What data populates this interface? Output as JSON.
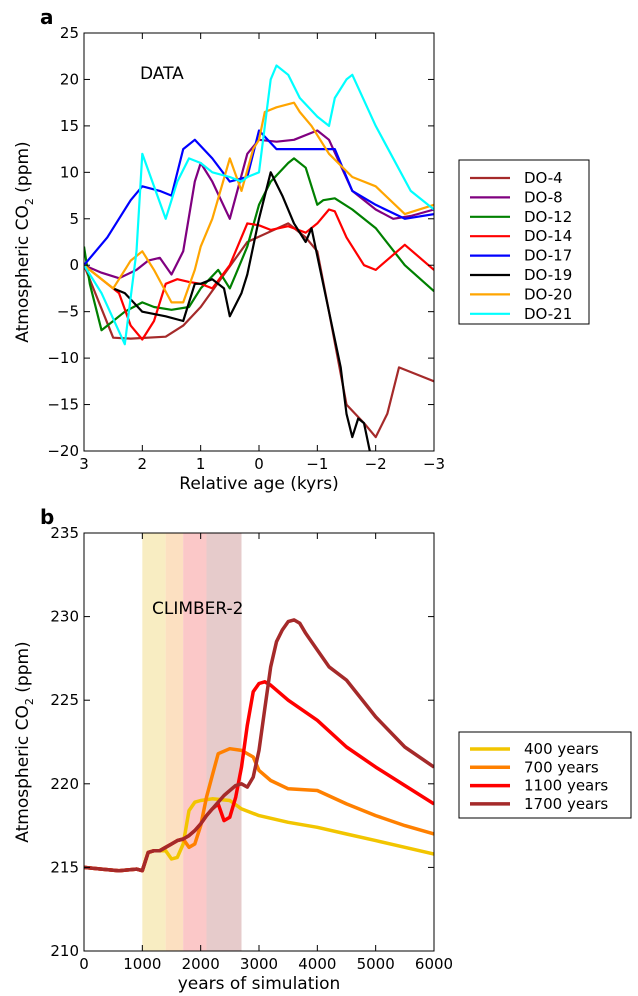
{
  "chart_data": [
    {
      "type": "line",
      "panel_label": "a",
      "annotation": "DATA",
      "xlabel": "Relative age (kyrs)",
      "ylabel": "Atmospheric CO$_2$ (ppm)",
      "ylabel_main": "Atmospheric CO",
      "ylabel_sub": "2",
      "ylabel_end": " (ppm)",
      "xlim": [
        3,
        -3
      ],
      "ylim": [
        -20,
        25
      ],
      "x_reversed": true,
      "xticks": [
        3,
        2,
        1,
        0,
        -1,
        -2,
        -3
      ],
      "xtick_labels": [
        "3",
        "2",
        "1",
        "0",
        "−1",
        "−2",
        "−3"
      ],
      "yticks": [
        -20,
        -15,
        -10,
        -5,
        0,
        5,
        10,
        15,
        20,
        25
      ],
      "ytick_labels": [
        "−20",
        "−15",
        "−10",
        "−5",
        "0",
        "5",
        "10",
        "15",
        "20",
        "25"
      ],
      "legend_position": "right",
      "grid": false,
      "series": [
        {
          "name": "DO-4",
          "color": "#a52a2a",
          "x": [
            3,
            2.5,
            2.2,
            1.6,
            1.3,
            1.0,
            0.6,
            0.2,
            -0.5,
            -0.8,
            -1.0,
            -1.2,
            -1.5,
            -1.8,
            -2.0,
            -2.2,
            -2.4,
            -3
          ],
          "y": [
            0,
            -7.8,
            -7.9,
            -7.7,
            -6.5,
            -4.5,
            -1,
            2.5,
            4.5,
            3,
            1.5,
            -5,
            -15,
            -17,
            -18.5,
            -16,
            -11,
            -12.5
          ]
        },
        {
          "name": "DO-8",
          "color": "#800080",
          "x": [
            3,
            2.7,
            2.4,
            2.1,
            1.9,
            1.7,
            1.5,
            1.3,
            1.1,
            1.0,
            0.8,
            0.5,
            0.2,
            0,
            -0.3,
            -0.6,
            -1.0,
            -1.2,
            -1.6,
            -2.0,
            -2.3,
            -2.6,
            -3
          ],
          "y": [
            0,
            -0.8,
            -1.4,
            -0.5,
            0.5,
            0.8,
            -1.0,
            1.5,
            9,
            11,
            9,
            5,
            12,
            13.5,
            13.3,
            13.5,
            14.5,
            13.5,
            8,
            6,
            5,
            5.3,
            6
          ]
        },
        {
          "name": "DO-12",
          "color": "#008000",
          "x": [
            3,
            2.9,
            2.7,
            2.5,
            2.3,
            2.0,
            1.8,
            1.5,
            1.2,
            1.0,
            0.7,
            0.5,
            0.4,
            0.2,
            0,
            -0.2,
            -0.5,
            -0.6,
            -0.8,
            -1.0,
            -1.1,
            -1.3,
            -1.6,
            -2.0,
            -2.5,
            -3
          ],
          "y": [
            2,
            -2,
            -7,
            -6,
            -5,
            -4,
            -4.5,
            -4.8,
            -4.5,
            -2.5,
            -0.5,
            -2.5,
            -1.0,
            2,
            6.5,
            9,
            11,
            11.5,
            10.5,
            6.5,
            7,
            7.2,
            6,
            4,
            0,
            -2.8
          ]
        },
        {
          "name": "DO-14",
          "color": "#ff0000",
          "x": [
            3,
            2.7,
            2.4,
            2.2,
            2.0,
            1.8,
            1.6,
            1.4,
            1.2,
            1.0,
            0.8,
            0.5,
            0.2,
            0,
            -0.2,
            -0.5,
            -0.8,
            -1.0,
            -1.2,
            -1.3,
            -1.5,
            -1.8,
            -2.0,
            -2.5,
            -3
          ],
          "y": [
            0,
            -1.5,
            -3,
            -6.5,
            -8,
            -6,
            -2,
            -1.5,
            -1.8,
            -2,
            -2.5,
            0,
            4.5,
            4.3,
            3.8,
            4.2,
            3.5,
            4.5,
            6,
            5.8,
            3,
            0,
            -0.5,
            2.2,
            -0.5
          ]
        },
        {
          "name": "DO-17",
          "color": "#0000ff",
          "x": [
            3,
            2.6,
            2.2,
            2.0,
            1.7,
            1.5,
            1.3,
            1.1,
            0.8,
            0.5,
            0.2,
            0,
            -0.3,
            -1.0,
            -1.3,
            -1.6,
            -2.0,
            -2.5,
            -3
          ],
          "y": [
            0,
            3,
            7,
            8.5,
            8,
            7.5,
            12.5,
            13.5,
            11.5,
            9,
            9.5,
            14.5,
            12.5,
            12.5,
            12.5,
            8,
            6.5,
            5,
            5.5
          ]
        },
        {
          "name": "DO-19",
          "color": "#000000",
          "x": [
            2.5,
            2.3,
            2.0,
            1.6,
            1.3,
            1.1,
            1.0,
            0.8,
            0.6,
            0.5,
            0.3,
            0.2,
            0,
            -0.2,
            -0.4,
            -0.6,
            -0.8,
            -0.9,
            -1.0,
            -1.2,
            -1.4,
            -1.5,
            -1.6,
            -1.7,
            -1.8,
            -1.9
          ],
          "y": [
            -2.5,
            -3,
            -5,
            -5.5,
            -6,
            -2,
            -2,
            -1.5,
            -2.5,
            -5.5,
            -3,
            -1,
            5,
            10,
            7.5,
            4.5,
            2.5,
            4,
            1,
            -5,
            -11,
            -16,
            -18.5,
            -16.5,
            -17,
            -20
          ]
        },
        {
          "name": "DO-20",
          "color": "#ffa500",
          "x": [
            3,
            2.8,
            2.5,
            2.2,
            2.0,
            1.8,
            1.5,
            1.3,
            1.1,
            1.0,
            0.8,
            0.5,
            0.3,
            0.1,
            0,
            -0.1,
            -0.3,
            -0.6,
            -0.7,
            -0.9,
            -1.2,
            -1.6,
            -2.0,
            -2.5,
            -3
          ],
          "y": [
            0,
            -1,
            -2.5,
            0.5,
            1.5,
            -0.5,
            -4,
            -4,
            -0.5,
            2,
            5,
            11.5,
            8,
            12.5,
            13.5,
            16.5,
            17,
            17.5,
            16.5,
            15,
            12,
            9.5,
            8.5,
            5.5,
            6.5
          ]
        },
        {
          "name": "DO-21",
          "color": "#00ffff",
          "x": [
            3,
            2.7,
            2.3,
            2.1,
            2.0,
            1.6,
            1.4,
            1.2,
            1.0,
            0.8,
            0.5,
            0.3,
            0.2,
            0.0,
            -0.2,
            -0.3,
            -0.5,
            -0.7,
            -1.0,
            -1.2,
            -1.3,
            -1.5,
            -1.6,
            -2.0,
            -2.6,
            -3
          ],
          "y": [
            0,
            -3,
            -8.5,
            1.5,
            12,
            5,
            9,
            11.5,
            11,
            10,
            9.5,
            9,
            9.5,
            10,
            20,
            21.5,
            20.5,
            18,
            16,
            15,
            18,
            20,
            20.5,
            15,
            8,
            6
          ]
        }
      ]
    },
    {
      "type": "line",
      "panel_label": "b",
      "annotation": "CLIMBER-2",
      "xlabel": "years of simulation",
      "ylabel_main": "Atmospheric CO",
      "ylabel_sub": "2",
      "ylabel_end": " (ppm)",
      "xlim": [
        0,
        6000
      ],
      "ylim": [
        210,
        235
      ],
      "xticks": [
        0,
        1000,
        2000,
        3000,
        4000,
        5000,
        6000
      ],
      "xtick_labels": [
        "0",
        "1000",
        "2000",
        "3000",
        "4000",
        "5000",
        "6000"
      ],
      "yticks": [
        210,
        215,
        220,
        225,
        230,
        235
      ],
      "ytick_labels": [
        "210",
        "215",
        "220",
        "225",
        "230",
        "235"
      ],
      "legend_position": "right",
      "grid": false,
      "shaded_bands": [
        {
          "x": [
            1000,
            1400
          ],
          "color": "#f5e6a8"
        },
        {
          "x": [
            1400,
            1700
          ],
          "color": "#fbd3a6"
        },
        {
          "x": [
            1700,
            2100
          ],
          "color": "#f9b0b0"
        },
        {
          "x": [
            2100,
            2700
          ],
          "color": "#dbb5b5"
        }
      ],
      "series": [
        {
          "name": "400 years",
          "color": "#f2c500",
          "x": [
            0,
            300,
            600,
            900,
            1000,
            1100,
            1200,
            1300,
            1400,
            1500,
            1600,
            1700,
            1800,
            1900,
            2000,
            2200,
            2500,
            2700,
            3000,
            3500,
            4000,
            4500,
            5000,
            5500,
            6000
          ],
          "y": [
            215.0,
            214.9,
            214.8,
            214.9,
            214.8,
            215.9,
            216.0,
            216.0,
            216.0,
            215.5,
            215.6,
            216.4,
            218.4,
            218.9,
            219.0,
            219.1,
            219.0,
            218.5,
            218.1,
            217.7,
            217.4,
            217.0,
            216.6,
            216.2,
            215.8
          ]
        },
        {
          "name": "700 years",
          "color": "#ff8000",
          "x": [
            0,
            300,
            600,
            900,
            1000,
            1100,
            1200,
            1300,
            1400,
            1500,
            1600,
            1700,
            1800,
            1900,
            2000,
            2100,
            2200,
            2300,
            2500,
            2700,
            2900,
            3000,
            3200,
            3500,
            4000,
            4500,
            5000,
            5500,
            6000
          ],
          "y": [
            215.0,
            214.9,
            214.8,
            214.9,
            214.8,
            215.9,
            216.0,
            216.0,
            216.2,
            216.4,
            216.6,
            216.7,
            216.2,
            216.4,
            217.5,
            219.2,
            220.5,
            221.8,
            222.1,
            222.0,
            221.6,
            220.8,
            220.2,
            219.7,
            219.6,
            218.8,
            218.1,
            217.5,
            217.0
          ]
        },
        {
          "name": "1100 years",
          "color": "#ff0000",
          "x": [
            0,
            300,
            600,
            900,
            1000,
            1100,
            1200,
            1300,
            1400,
            1500,
            1600,
            1700,
            1800,
            1900,
            2000,
            2100,
            2200,
            2300,
            2400,
            2500,
            2600,
            2700,
            2800,
            2900,
            3000,
            3100,
            3200,
            3500,
            4000,
            4500,
            5000,
            5500,
            6000
          ],
          "y": [
            215.0,
            214.9,
            214.8,
            214.9,
            214.8,
            215.9,
            216.0,
            216.0,
            216.2,
            216.4,
            216.6,
            216.7,
            216.9,
            217.2,
            217.6,
            218.1,
            218.5,
            218.8,
            217.8,
            218.0,
            219.2,
            221.0,
            223.5,
            225.5,
            226.0,
            226.1,
            225.9,
            225.0,
            223.8,
            222.2,
            221.0,
            219.9,
            218.8
          ]
        },
        {
          "name": "1700 years",
          "color": "#a52a2a",
          "x": [
            0,
            300,
            600,
            900,
            1000,
            1100,
            1200,
            1300,
            1400,
            1500,
            1600,
            1700,
            1800,
            1900,
            2000,
            2100,
            2200,
            2300,
            2400,
            2500,
            2600,
            2700,
            2800,
            2900,
            3000,
            3100,
            3200,
            3300,
            3400,
            3500,
            3600,
            3700,
            3800,
            4000,
            4200,
            4500,
            5000,
            5500,
            6000
          ],
          "y": [
            215.0,
            214.9,
            214.8,
            214.9,
            214.8,
            215.9,
            216.0,
            216.0,
            216.2,
            216.4,
            216.6,
            216.7,
            216.9,
            217.2,
            217.6,
            218.1,
            218.5,
            218.9,
            219.3,
            219.6,
            219.9,
            220.0,
            219.8,
            220.4,
            222.0,
            224.5,
            227.0,
            228.5,
            229.2,
            229.7,
            229.8,
            229.6,
            229.0,
            228.0,
            227.0,
            226.2,
            224.0,
            222.2,
            221.0
          ]
        }
      ]
    }
  ]
}
